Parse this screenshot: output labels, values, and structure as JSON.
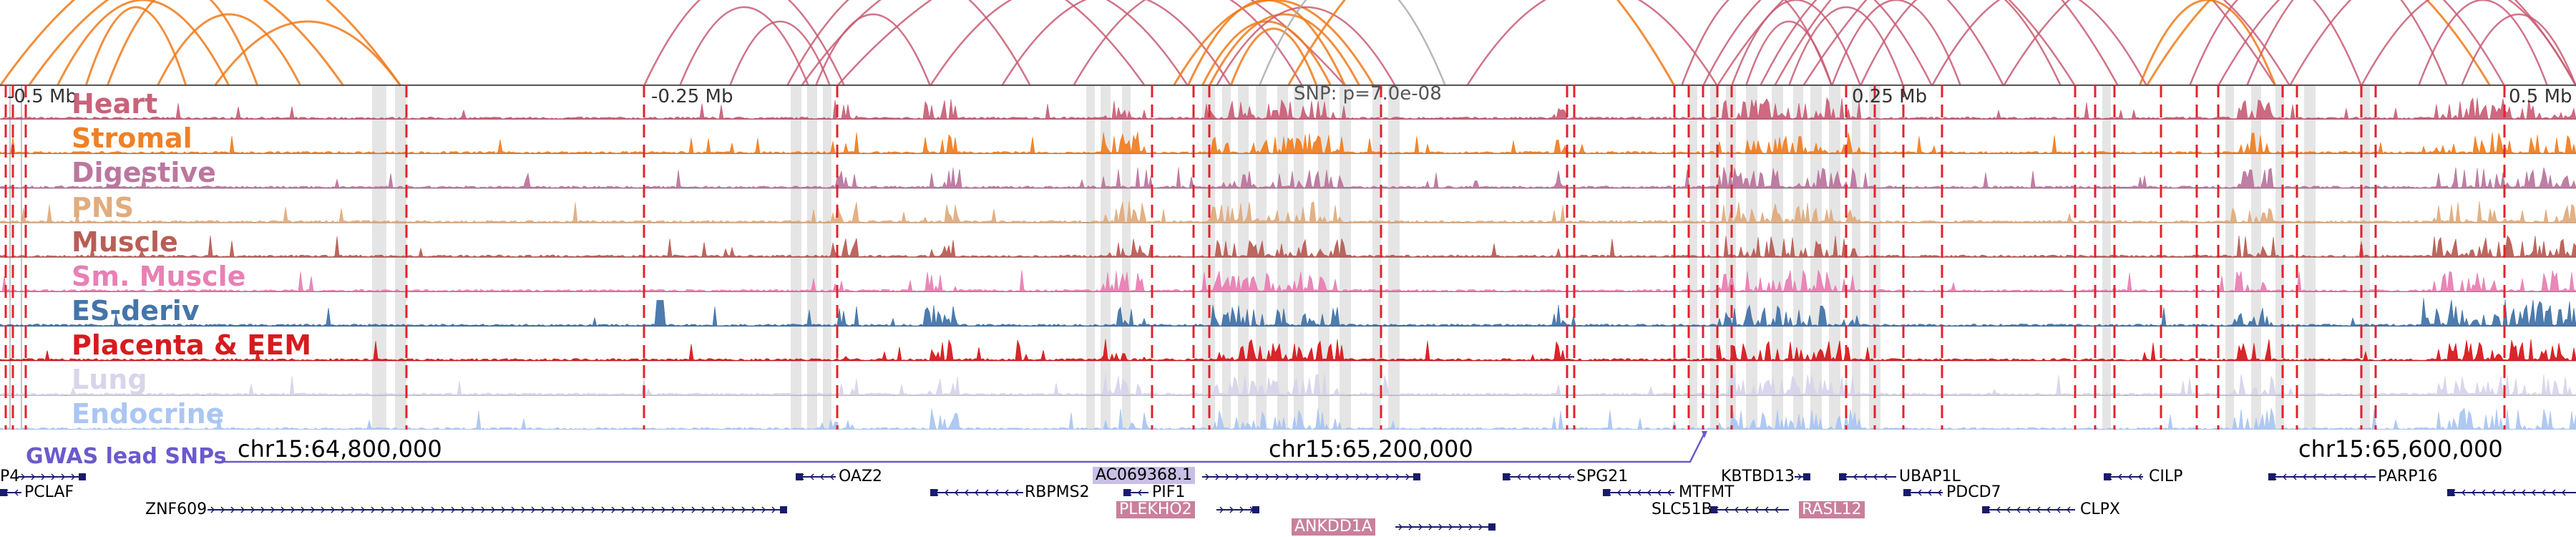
{
  "axis": {
    "left_label": "-0.5 Mb",
    "mid_left_label": "-0.25 Mb",
    "snp_label": "SNP: p=7.0e-08",
    "mid_right_label": "0.25 Mb",
    "right_label": "0.5 Mb"
  },
  "tracks": [
    {
      "name": "Heart",
      "color": "#c85a73"
    },
    {
      "name": "Stromal",
      "color": "#f07a1a"
    },
    {
      "name": "Digestive",
      "color": "#b8709a"
    },
    {
      "name": "PNS",
      "color": "#e0a878"
    },
    {
      "name": "Muscle",
      "color": "#b5564e"
    },
    {
      "name": "Sm. Muscle",
      "color": "#e87ab0"
    },
    {
      "name": "ES-deriv",
      "color": "#3b6ea5"
    },
    {
      "name": "Placenta & EEM",
      "color": "#d40f14"
    },
    {
      "name": "Lung",
      "color": "#d6d3ea"
    },
    {
      "name": "Endocrine",
      "color": "#a7c3f2"
    }
  ],
  "gwas": {
    "label": "GWAS lead SNPs",
    "color": "#6a5acd"
  },
  "coordinates": [
    "chr15:64,800,000",
    "chr15:65,200,000",
    "chr15:65,600,000"
  ],
  "genes": [
    {
      "name": "P4",
      "style": ""
    },
    {
      "name": "PCLAF",
      "style": ""
    },
    {
      "name": "ZNF609",
      "style": ""
    },
    {
      "name": "OAZ2",
      "style": ""
    },
    {
      "name": "RBPMS2",
      "style": ""
    },
    {
      "name": "AC069368.1",
      "style": "hl-purple"
    },
    {
      "name": "PIF1",
      "style": ""
    },
    {
      "name": "PLEKHO2",
      "style": "hl-pink"
    },
    {
      "name": "ANKDD1A",
      "style": "hl-pink"
    },
    {
      "name": "SPG21",
      "style": ""
    },
    {
      "name": "MTFMT",
      "style": ""
    },
    {
      "name": "SLC51B",
      "style": ""
    },
    {
      "name": "KBTBD13",
      "style": ""
    },
    {
      "name": "RASL12",
      "style": "hl-pink"
    },
    {
      "name": "UBAP1L",
      "style": ""
    },
    {
      "name": "PDCD7",
      "style": ""
    },
    {
      "name": "CLPX",
      "style": ""
    },
    {
      "name": "CILP",
      "style": ""
    },
    {
      "name": "PARP16",
      "style": ""
    }
  ]
}
